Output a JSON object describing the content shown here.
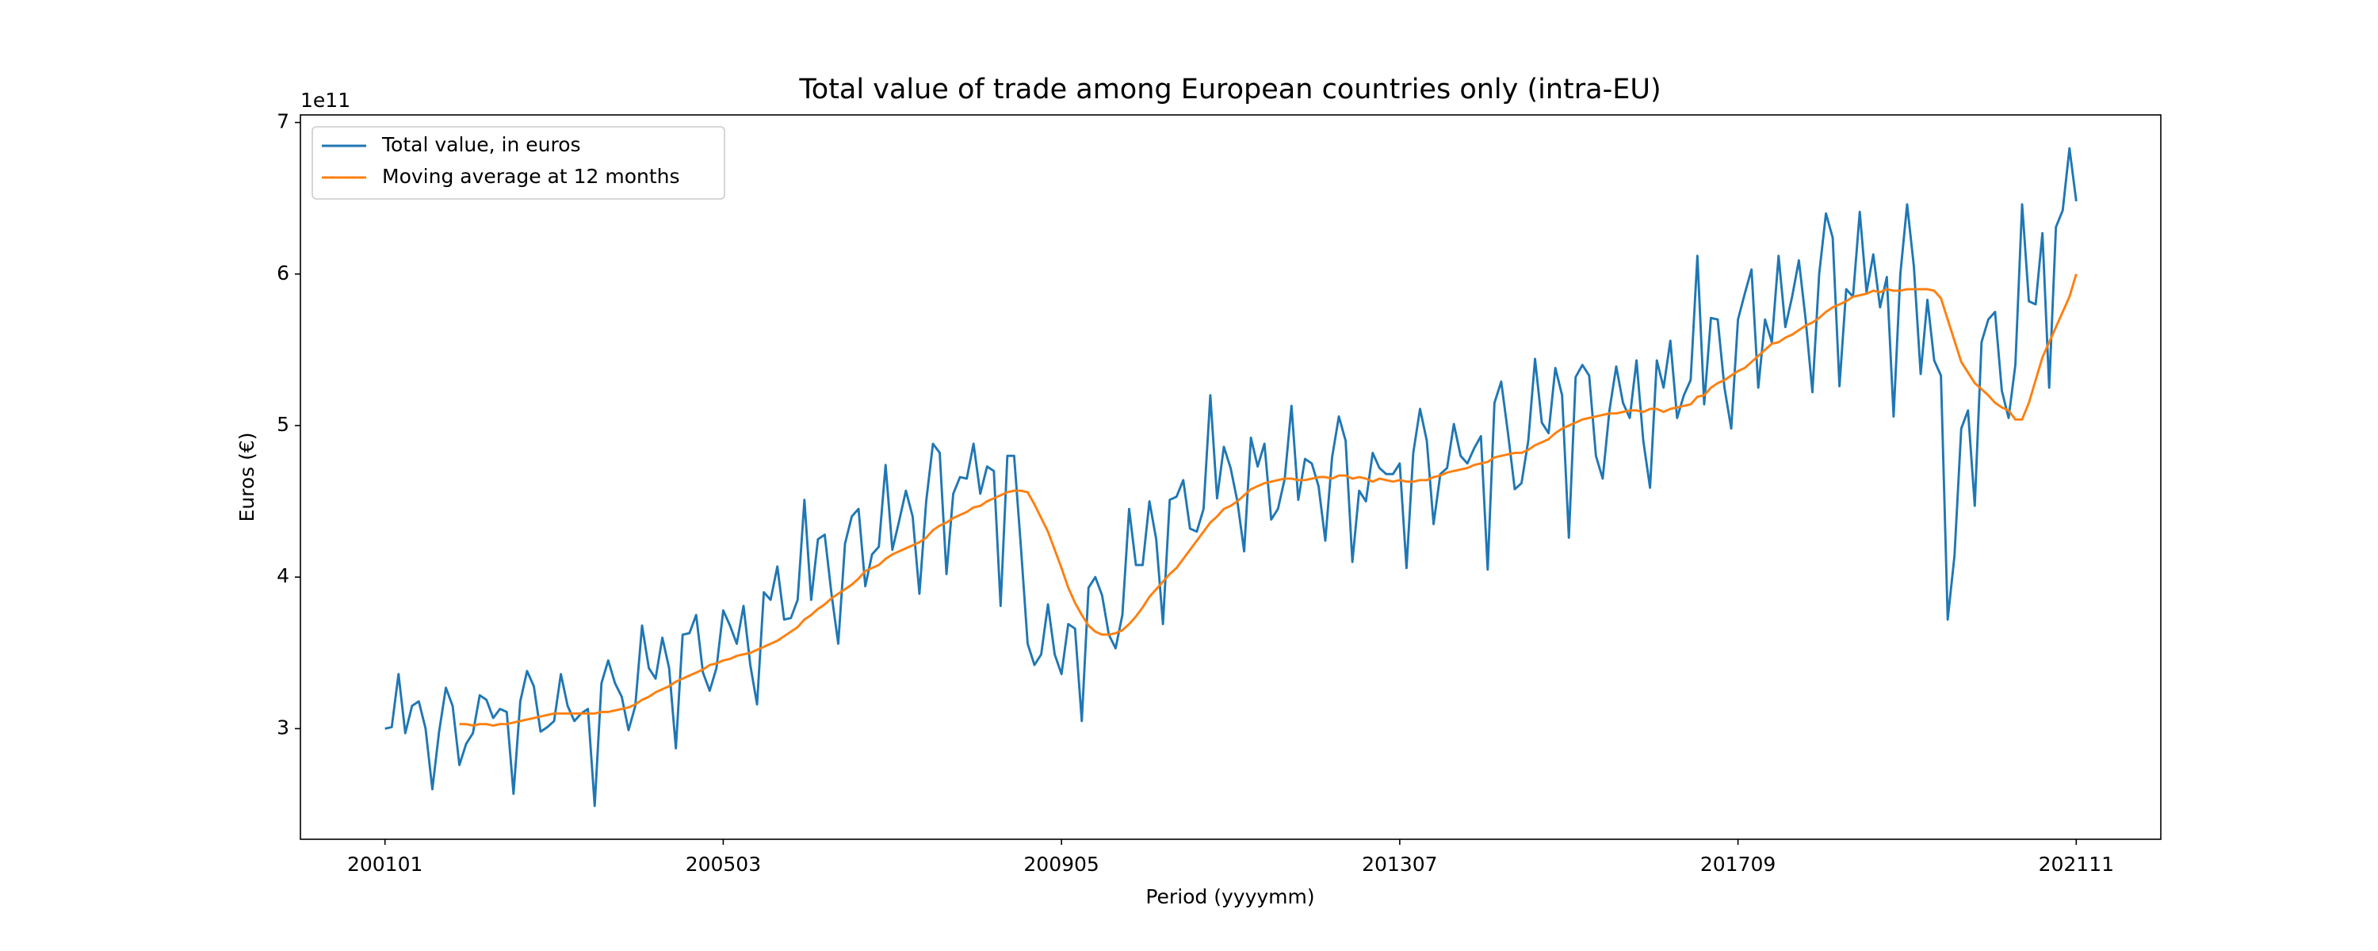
{
  "chart_data": {
    "type": "line",
    "title": "Total value of trade among European countries only (intra-EU)",
    "xlabel": "Period (yyyymm)",
    "ylabel": "Euros (€)",
    "y_offset_label": "1e11",
    "legend": "upper left",
    "grid": false,
    "categories": [
      "200101",
      null,
      null,
      null,
      null,
      null,
      null,
      null,
      null,
      null,
      null,
      null,
      null,
      null,
      null,
      null,
      null,
      null,
      null,
      null,
      null,
      null,
      null,
      null,
      null,
      null,
      null,
      null,
      null,
      null,
      null,
      null,
      null,
      null,
      null,
      null,
      null,
      null,
      null,
      null,
      null,
      null,
      null,
      null,
      null,
      null,
      null,
      null,
      null,
      null,
      "200503",
      null,
      null,
      null,
      null,
      null,
      null,
      null,
      null,
      null,
      null,
      null,
      null,
      null,
      null,
      null,
      null,
      null,
      null,
      null,
      null,
      null,
      null,
      null,
      null,
      null,
      null,
      null,
      null,
      null,
      null,
      null,
      null,
      null,
      null,
      null,
      null,
      null,
      null,
      null,
      null,
      null,
      null,
      null,
      null,
      null,
      null,
      null,
      null,
      null,
      "200905",
      null,
      null,
      null,
      null,
      null,
      null,
      null,
      null,
      null,
      null,
      null,
      null,
      null,
      null,
      null,
      null,
      null,
      null,
      null,
      null,
      null,
      null,
      null,
      null,
      null,
      null,
      null,
      null,
      null,
      null,
      null,
      null,
      null,
      null,
      null,
      null,
      null,
      null,
      null,
      null,
      null,
      null,
      null,
      null,
      null,
      null,
      null,
      null,
      null,
      "201307",
      null,
      null,
      null,
      null,
      null,
      null,
      null,
      null,
      null,
      null,
      null,
      null,
      null,
      null,
      null,
      null,
      null,
      null,
      null,
      null,
      null,
      null,
      null,
      null,
      null,
      null,
      null,
      null,
      null,
      null,
      null,
      null,
      null,
      null,
      null,
      null,
      null,
      null,
      null,
      null,
      null,
      null,
      null,
      null,
      null,
      null,
      null,
      null,
      null,
      "201709",
      null,
      null,
      null,
      null,
      null,
      null,
      null,
      null,
      null,
      null,
      null,
      null,
      null,
      null,
      null,
      null,
      null,
      null,
      null,
      null,
      null,
      null,
      null,
      null,
      null,
      null,
      null,
      null,
      null,
      null,
      null,
      null,
      null,
      null,
      null,
      null,
      null,
      null,
      null,
      null,
      null,
      null,
      null,
      null,
      null,
      null,
      null,
      null,
      null,
      "202111"
    ],
    "xlim": [
      -12.5,
      262.5
    ],
    "ylim": [
      2.27,
      7.05
    ],
    "yticks": [
      3,
      4,
      5,
      6,
      7
    ],
    "series": [
      {
        "name": "Total value, in euros",
        "color": "#1f77b4",
        "values": [
          3.0,
          3.01,
          3.36,
          2.97,
          3.15,
          3.18,
          3.0,
          2.6,
          2.98,
          3.27,
          3.15,
          2.76,
          2.9,
          2.97,
          3.22,
          3.19,
          3.07,
          3.13,
          3.11,
          2.57,
          3.18,
          3.38,
          3.28,
          2.98,
          3.01,
          3.05,
          3.36,
          3.15,
          3.05,
          3.1,
          3.13,
          2.49,
          3.3,
          3.45,
          3.3,
          3.21,
          2.99,
          3.15,
          3.68,
          3.4,
          3.33,
          3.6,
          3.4,
          2.87,
          3.62,
          3.63,
          3.75,
          3.37,
          3.25,
          3.4,
          3.78,
          3.68,
          3.56,
          3.81,
          3.42,
          3.16,
          3.9,
          3.85,
          4.07,
          3.72,
          3.73,
          3.85,
          4.51,
          3.85,
          4.25,
          4.28,
          3.89,
          3.56,
          4.22,
          4.4,
          4.45,
          3.94,
          4.15,
          4.2,
          4.74,
          4.18,
          4.37,
          4.57,
          4.4,
          3.89,
          4.5,
          4.88,
          4.82,
          4.02,
          4.55,
          4.66,
          4.65,
          4.88,
          4.55,
          4.73,
          4.7,
          3.81,
          4.8,
          4.8,
          4.2,
          3.56,
          3.42,
          3.49,
          3.82,
          3.49,
          3.36,
          3.69,
          3.66,
          3.05,
          3.93,
          4.0,
          3.88,
          3.62,
          3.53,
          3.75,
          4.45,
          4.08,
          4.08,
          4.5,
          4.25,
          3.69,
          4.51,
          4.53,
          4.64,
          4.32,
          4.3,
          4.45,
          5.2,
          4.52,
          4.86,
          4.72,
          4.5,
          4.17,
          4.92,
          4.73,
          4.88,
          4.38,
          4.45,
          4.65,
          5.13,
          4.51,
          4.78,
          4.75,
          4.6,
          4.24,
          4.79,
          5.06,
          4.9,
          4.1,
          4.57,
          4.5,
          4.82,
          4.72,
          4.68,
          4.68,
          4.75,
          4.06,
          4.82,
          5.11,
          4.9,
          4.35,
          4.68,
          4.72,
          5.01,
          4.8,
          4.75,
          4.85,
          4.93,
          4.05,
          5.15,
          5.29,
          4.95,
          4.58,
          4.62,
          4.9,
          5.44,
          5.02,
          4.95,
          5.38,
          5.2,
          4.26,
          5.32,
          5.4,
          5.33,
          4.8,
          4.65,
          5.1,
          5.39,
          5.15,
          5.05,
          5.43,
          4.9,
          4.59,
          5.43,
          5.25,
          5.56,
          5.05,
          5.2,
          5.3,
          6.12,
          5.14,
          5.71,
          5.7,
          5.25,
          4.98,
          5.7,
          5.87,
          6.03,
          5.25,
          5.7,
          5.55,
          6.12,
          5.65,
          5.85,
          6.09,
          5.7,
          5.22,
          6.0,
          6.4,
          6.24,
          5.26,
          5.9,
          5.85,
          6.41,
          5.88,
          6.13,
          5.78,
          5.98,
          5.06,
          6.0,
          6.46,
          6.05,
          5.34,
          5.83,
          5.43,
          5.33,
          3.72,
          4.14,
          4.98,
          5.1,
          4.47,
          5.55,
          5.7,
          5.75,
          5.23,
          5.05,
          5.4,
          6.46,
          5.82,
          5.8,
          6.27,
          5.25,
          6.31,
          6.42,
          6.83,
          6.48
        ]
      },
      {
        "name": "Moving average at 12 months",
        "color": "#ff7f0e",
        "values": [
          null,
          null,
          null,
          null,
          null,
          null,
          null,
          null,
          null,
          null,
          null,
          3.03,
          3.03,
          3.02,
          3.03,
          3.03,
          3.02,
          3.03,
          3.03,
          3.04,
          3.05,
          3.06,
          3.07,
          3.08,
          3.09,
          3.1,
          3.1,
          3.1,
          3.1,
          3.1,
          3.1,
          3.1,
          3.11,
          3.11,
          3.12,
          3.13,
          3.14,
          3.16,
          3.19,
          3.21,
          3.24,
          3.26,
          3.28,
          3.31,
          3.33,
          3.35,
          3.37,
          3.39,
          3.42,
          3.43,
          3.45,
          3.46,
          3.48,
          3.49,
          3.5,
          3.52,
          3.54,
          3.56,
          3.58,
          3.61,
          3.64,
          3.67,
          3.72,
          3.75,
          3.79,
          3.82,
          3.86,
          3.89,
          3.92,
          3.95,
          3.99,
          4.04,
          4.06,
          4.08,
          4.12,
          4.15,
          4.17,
          4.19,
          4.21,
          4.23,
          4.26,
          4.31,
          4.34,
          4.36,
          4.39,
          4.41,
          4.43,
          4.46,
          4.47,
          4.5,
          4.52,
          4.54,
          4.56,
          4.57,
          4.57,
          4.56,
          4.48,
          4.39,
          4.3,
          4.18,
          4.06,
          3.93,
          3.83,
          3.75,
          3.68,
          3.64,
          3.62,
          3.62,
          3.63,
          3.65,
          3.69,
          3.74,
          3.8,
          3.87,
          3.92,
          3.97,
          4.02,
          4.06,
          4.12,
          4.18,
          4.24,
          4.3,
          4.36,
          4.4,
          4.45,
          4.47,
          4.5,
          4.54,
          4.58,
          4.6,
          4.62,
          4.63,
          4.64,
          4.65,
          4.65,
          4.64,
          4.64,
          4.65,
          4.66,
          4.66,
          4.65,
          4.67,
          4.67,
          4.65,
          4.66,
          4.65,
          4.63,
          4.65,
          4.64,
          4.63,
          4.64,
          4.63,
          4.63,
          4.64,
          4.64,
          4.66,
          4.67,
          4.69,
          4.7,
          4.71,
          4.72,
          4.74,
          4.75,
          4.76,
          4.79,
          4.8,
          4.81,
          4.82,
          4.82,
          4.84,
          4.87,
          4.89,
          4.91,
          4.95,
          4.98,
          5.0,
          5.02,
          5.04,
          5.05,
          5.06,
          5.07,
          5.08,
          5.08,
          5.09,
          5.1,
          5.1,
          5.09,
          5.11,
          5.11,
          5.09,
          5.11,
          5.12,
          5.13,
          5.14,
          5.19,
          5.2,
          5.25,
          5.28,
          5.3,
          5.33,
          5.36,
          5.38,
          5.42,
          5.46,
          5.5,
          5.54,
          5.55,
          5.58,
          5.6,
          5.63,
          5.66,
          5.68,
          5.71,
          5.75,
          5.78,
          5.8,
          5.82,
          5.85,
          5.86,
          5.87,
          5.89,
          5.88,
          5.9,
          5.89,
          5.89,
          5.9,
          5.9,
          5.9,
          5.9,
          5.89,
          5.84,
          5.7,
          5.56,
          5.42,
          5.35,
          5.28,
          5.24,
          5.2,
          5.15,
          5.12,
          5.1,
          5.04,
          5.04,
          5.15,
          5.3,
          5.45,
          5.55,
          5.65,
          5.75,
          5.85,
          6.0
        ]
      }
    ]
  }
}
